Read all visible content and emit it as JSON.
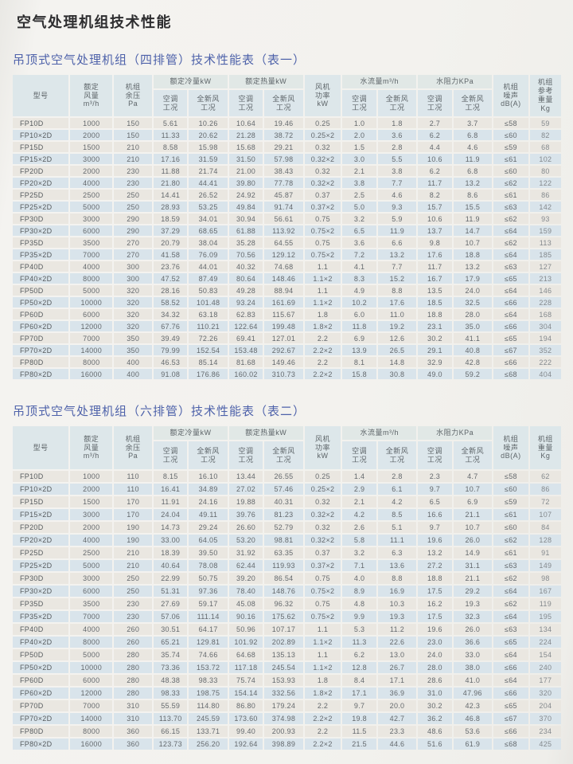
{
  "page": {
    "title": "空气处理机组技术性能"
  },
  "headers": {
    "model": "型号",
    "airflow": "额定\n风量\nm³/h",
    "pressure": "机组\n余压\nPa",
    "cooling_group": "额定冷量kW",
    "heating_group": "额定热量kW",
    "fan_power": "风机\n功率\nkW",
    "water_flow_group": "水流量m³/h",
    "water_resistance_group": "水阻力KPa",
    "noise": "机组\n噪声\ndB(A)",
    "ac_condition": "空调\n工况",
    "fresh_condition": "全新风\n工况"
  },
  "table1": {
    "caption": "吊顶式空气处理机组（四排管）技术性能表（表一）",
    "weight_header": "机组\n参考\n重量\nKg",
    "rows": [
      [
        "FP10D",
        "1000",
        "150",
        "5.61",
        "10.26",
        "10.64",
        "19.46",
        "0.25",
        "1.0",
        "1.8",
        "2.7",
        "3.7",
        "≤58",
        "59"
      ],
      [
        "FP10×2D",
        "2000",
        "150",
        "11.33",
        "20.62",
        "21.28",
        "38.72",
        "0.25×2",
        "2.0",
        "3.6",
        "6.2",
        "6.8",
        "≤60",
        "82"
      ],
      [
        "FP15D",
        "1500",
        "210",
        "8.58",
        "15.98",
        "15.68",
        "29.21",
        "0.32",
        "1.5",
        "2.8",
        "4.4",
        "4.6",
        "≤59",
        "68"
      ],
      [
        "FP15×2D",
        "3000",
        "210",
        "17.16",
        "31.59",
        "31.50",
        "57.98",
        "0.32×2",
        "3.0",
        "5.5",
        "10.6",
        "11.9",
        "≤61",
        "102"
      ],
      [
        "FP20D",
        "2000",
        "230",
        "11.88",
        "21.74",
        "21.00",
        "38.43",
        "0.32",
        "2.1",
        "3.8",
        "6.2",
        "6.8",
        "≤60",
        "80"
      ],
      [
        "FP20×2D",
        "4000",
        "230",
        "21.80",
        "44.41",
        "39.80",
        "77.78",
        "0.32×2",
        "3.8",
        "7.7",
        "11.7",
        "13.2",
        "≤62",
        "122"
      ],
      [
        "FP25D",
        "2500",
        "250",
        "14.41",
        "26.52",
        "24.92",
        "45.87",
        "0.37",
        "2.5",
        "4.6",
        "8.2",
        "8.6",
        "≤61",
        "86"
      ],
      [
        "FP25×2D",
        "5000",
        "250",
        "28.93",
        "53.25",
        "49.84",
        "91.74",
        "0.37×2",
        "5.0",
        "9.3",
        "15.7",
        "15.5",
        "≤63",
        "142"
      ],
      [
        "FP30D",
        "3000",
        "290",
        "18.59",
        "34.01",
        "30.94",
        "56.61",
        "0.75",
        "3.2",
        "5.9",
        "10.6",
        "11.9",
        "≤62",
        "93"
      ],
      [
        "FP30×2D",
        "6000",
        "290",
        "37.29",
        "68.65",
        "61.88",
        "113.92",
        "0.75×2",
        "6.5",
        "11.9",
        "13.7",
        "14.7",
        "≤64",
        "159"
      ],
      [
        "FP35D",
        "3500",
        "270",
        "20.79",
        "38.04",
        "35.28",
        "64.55",
        "0.75",
        "3.6",
        "6.6",
        "9.8",
        "10.7",
        "≤62",
        "113"
      ],
      [
        "FP35×2D",
        "7000",
        "270",
        "41.58",
        "76.09",
        "70.56",
        "129.12",
        "0.75×2",
        "7.2",
        "13.2",
        "17.6",
        "18.8",
        "≤64",
        "185"
      ],
      [
        "FP40D",
        "4000",
        "300",
        "23.76",
        "44.01",
        "40.32",
        "74.68",
        "1.1",
        "4.1",
        "7.7",
        "11.7",
        "13.2",
        "≤63",
        "127"
      ],
      [
        "FP40×2D",
        "8000",
        "300",
        "47.52",
        "87.49",
        "80.64",
        "148.46",
        "1.1×2",
        "8.3",
        "15.2",
        "16.7",
        "17.9",
        "≤65",
        "213"
      ],
      [
        "FP50D",
        "5000",
        "320",
        "28.16",
        "50.83",
        "49.28",
        "88.94",
        "1.1",
        "4.9",
        "8.8",
        "13.5",
        "24.0",
        "≤64",
        "146"
      ],
      [
        "FP50×2D",
        "10000",
        "320",
        "58.52",
        "101.48",
        "93.24",
        "161.69",
        "1.1×2",
        "10.2",
        "17.6",
        "18.5",
        "32.5",
        "≤66",
        "228"
      ],
      [
        "FP60D",
        "6000",
        "320",
        "34.32",
        "63.18",
        "62.83",
        "115.67",
        "1.8",
        "6.0",
        "11.0",
        "18.8",
        "28.0",
        "≤64",
        "168"
      ],
      [
        "FP60×2D",
        "12000",
        "320",
        "67.76",
        "110.21",
        "122.64",
        "199.48",
        "1.8×2",
        "11.8",
        "19.2",
        "23.1",
        "35.0",
        "≤66",
        "304"
      ],
      [
        "FP70D",
        "7000",
        "350",
        "39.49",
        "72.26",
        "69.41",
        "127.01",
        "2.2",
        "6.9",
        "12.6",
        "30.2",
        "41.1",
        "≤65",
        "194"
      ],
      [
        "FP70×2D",
        "14000",
        "350",
        "79.99",
        "152.54",
        "153.48",
        "292.67",
        "2.2×2",
        "13.9",
        "26.5",
        "29.1",
        "40.8",
        "≤67",
        "352"
      ],
      [
        "FP80D",
        "8000",
        "400",
        "46.53",
        "85.14",
        "81.68",
        "149.46",
        "2.2",
        "8.1",
        "14.8",
        "32.9",
        "42.8",
        "≤66",
        "222"
      ],
      [
        "FP80×2D",
        "16000",
        "400",
        "91.08",
        "176.86",
        "160.02",
        "310.73",
        "2.2×2",
        "15.8",
        "30.8",
        "49.0",
        "59.2",
        "≤68",
        "404"
      ]
    ]
  },
  "table2": {
    "caption": "吊顶式空气处理机组（六排管）技术性能表（表二）",
    "weight_header": "机组\n重量\nKg",
    "rows": [
      [
        "FP10D",
        "1000",
        "110",
        "8.15",
        "16.10",
        "13.44",
        "26.55",
        "0.25",
        "1.4",
        "2.8",
        "2.3",
        "4.7",
        "≤58",
        "62"
      ],
      [
        "FP10×2D",
        "2000",
        "110",
        "16.41",
        "34.89",
        "27.02",
        "57.46",
        "0.25×2",
        "2.9",
        "6.1",
        "9.7",
        "10.7",
        "≤60",
        "86"
      ],
      [
        "FP15D",
        "1500",
        "170",
        "11.91",
        "24.16",
        "19.88",
        "40.31",
        "0.32",
        "2.1",
        "4.2",
        "6.5",
        "6.9",
        "≤59",
        "72"
      ],
      [
        "FP15×2D",
        "3000",
        "170",
        "24.04",
        "49.11",
        "39.76",
        "81.23",
        "0.32×2",
        "4.2",
        "8.5",
        "16.6",
        "21.1",
        "≤61",
        "107"
      ],
      [
        "FP20D",
        "2000",
        "190",
        "14.73",
        "29.24",
        "26.60",
        "52.79",
        "0.32",
        "2.6",
        "5.1",
        "9.7",
        "10.7",
        "≤60",
        "84"
      ],
      [
        "FP20×2D",
        "4000",
        "190",
        "33.00",
        "64.05",
        "53.20",
        "98.81",
        "0.32×2",
        "5.8",
        "11.1",
        "19.6",
        "26.0",
        "≤62",
        "128"
      ],
      [
        "FP25D",
        "2500",
        "210",
        "18.39",
        "39.50",
        "31.92",
        "63.35",
        "0.37",
        "3.2",
        "6.3",
        "13.2",
        "14.9",
        "≤61",
        "91"
      ],
      [
        "FP25×2D",
        "5000",
        "210",
        "40.64",
        "78.08",
        "62.44",
        "119.93",
        "0.37×2",
        "7.1",
        "13.6",
        "27.2",
        "31.1",
        "≤63",
        "149"
      ],
      [
        "FP30D",
        "3000",
        "250",
        "22.99",
        "50.75",
        "39.20",
        "86.54",
        "0.75",
        "4.0",
        "8.8",
        "18.8",
        "21.1",
        "≤62",
        "98"
      ],
      [
        "FP30×2D",
        "6000",
        "250",
        "51.31",
        "97.36",
        "78.40",
        "148.76",
        "0.75×2",
        "8.9",
        "16.9",
        "17.5",
        "29.2",
        "≤64",
        "167"
      ],
      [
        "FP35D",
        "3500",
        "230",
        "27.69",
        "59.17",
        "45.08",
        "96.32",
        "0.75",
        "4.8",
        "10.3",
        "16.2",
        "19.3",
        "≤62",
        "119"
      ],
      [
        "FP35×2D",
        "7000",
        "230",
        "57.06",
        "111.14",
        "90.16",
        "175.62",
        "0.75×2",
        "9.9",
        "19.3",
        "17.5",
        "32.3",
        "≤64",
        "195"
      ],
      [
        "FP40D",
        "4000",
        "260",
        "30.51",
        "64.17",
        "50.96",
        "107.17",
        "1.1",
        "5.3",
        "11.2",
        "19.6",
        "26.0",
        "≤63",
        "134"
      ],
      [
        "FP40×2D",
        "8000",
        "260",
        "65.21",
        "129.81",
        "101.92",
        "202.89",
        "1.1×2",
        "11.3",
        "22.6",
        "23.0",
        "36.6",
        "≤65",
        "224"
      ],
      [
        "FP50D",
        "5000",
        "280",
        "35.74",
        "74.66",
        "64.68",
        "135.13",
        "1.1",
        "6.2",
        "13.0",
        "24.0",
        "33.0",
        "≤64",
        "154"
      ],
      [
        "FP50×2D",
        "10000",
        "280",
        "73.36",
        "153.72",
        "117.18",
        "245.54",
        "1.1×2",
        "12.8",
        "26.7",
        "28.0",
        "38.0",
        "≤66",
        "240"
      ],
      [
        "FP60D",
        "6000",
        "280",
        "48.38",
        "98.33",
        "75.74",
        "153.93",
        "1.8",
        "8.4",
        "17.1",
        "28.6",
        "41.0",
        "≤64",
        "177"
      ],
      [
        "FP60×2D",
        "12000",
        "280",
        "98.33",
        "198.75",
        "154.14",
        "332.56",
        "1.8×2",
        "17.1",
        "36.9",
        "31.0",
        "47.96",
        "≤66",
        "320"
      ],
      [
        "FP70D",
        "7000",
        "310",
        "55.59",
        "114.80",
        "86.80",
        "179.24",
        "2.2",
        "9.7",
        "20.0",
        "30.2",
        "42.3",
        "≤65",
        "204"
      ],
      [
        "FP70×2D",
        "14000",
        "310",
        "113.70",
        "245.59",
        "173.60",
        "374.98",
        "2.2×2",
        "19.8",
        "42.7",
        "36.2",
        "46.8",
        "≤67",
        "370"
      ],
      [
        "FP80D",
        "8000",
        "360",
        "66.15",
        "133.71",
        "99.40",
        "200.93",
        "2.2",
        "11.5",
        "23.3",
        "48.6",
        "53.6",
        "≤66",
        "234"
      ],
      [
        "FP80×2D",
        "16000",
        "360",
        "123.73",
        "256.20",
        "192.64",
        "398.89",
        "2.2×2",
        "21.5",
        "44.6",
        "51.6",
        "61.9",
        "≤68",
        "425"
      ]
    ]
  },
  "colors": {
    "caption_blue": "#4e62aa",
    "row_warm": "#eae7e1",
    "row_blue": "#d9e4eb",
    "header_bg": "#dde7ea",
    "page_bg": "#f3f2ee"
  }
}
